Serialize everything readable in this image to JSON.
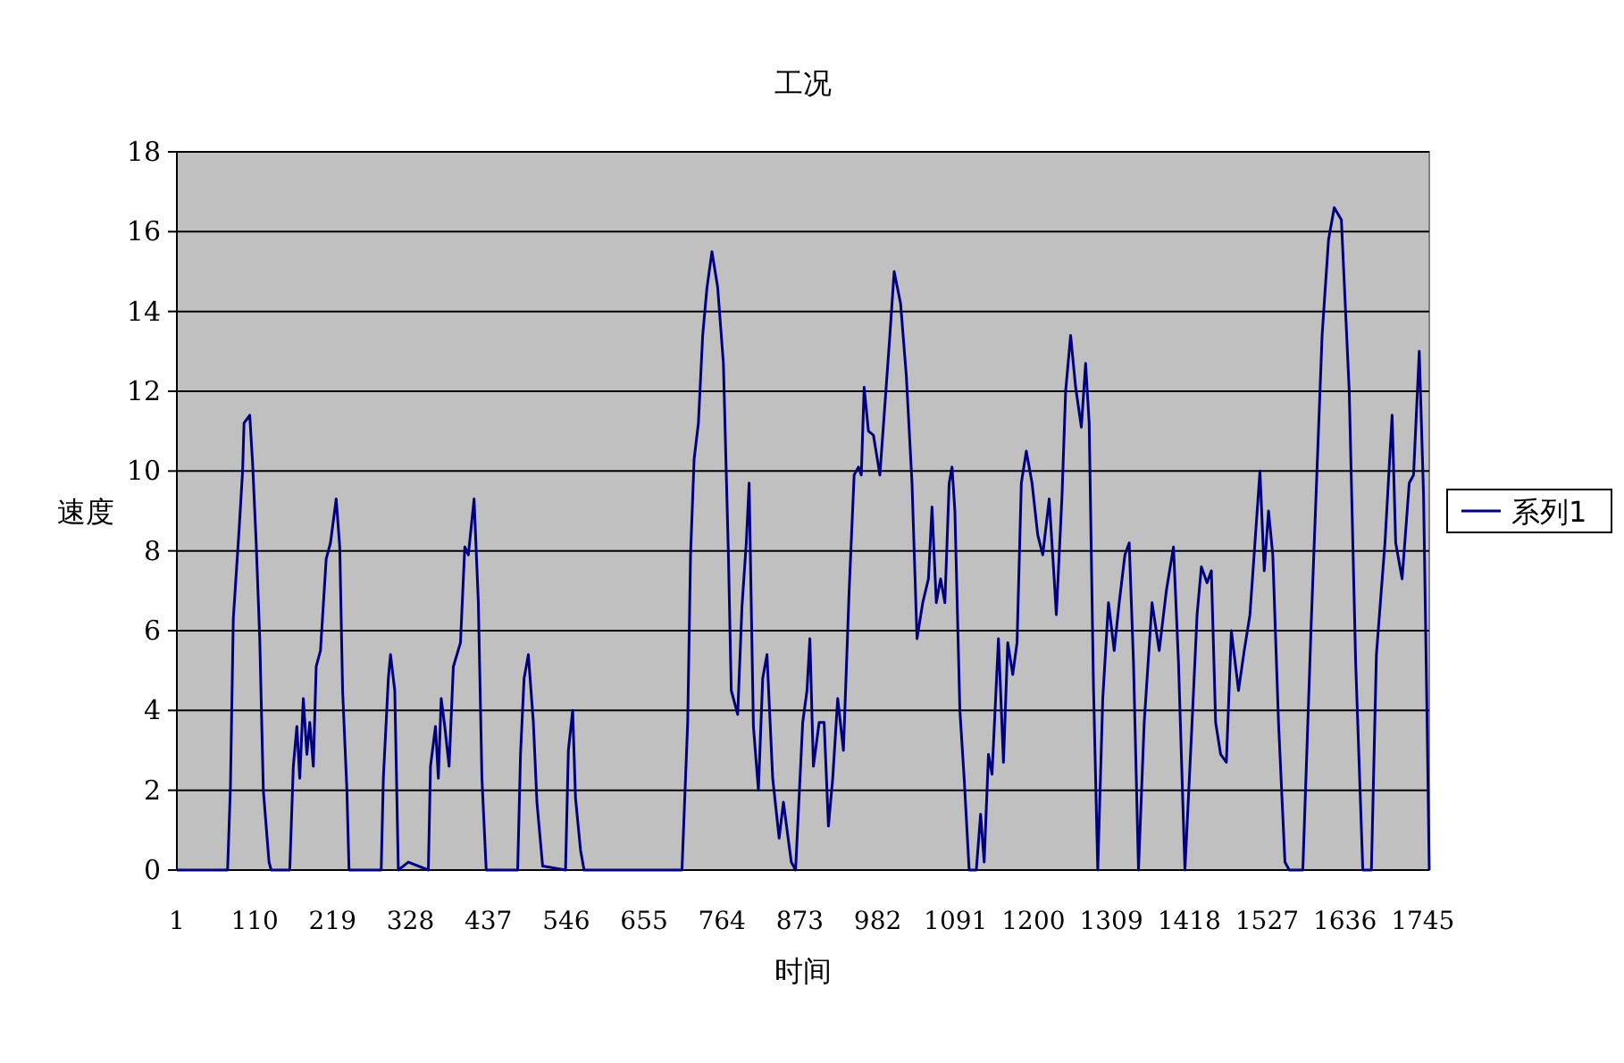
{
  "chart_data": {
    "type": "line",
    "title": "工况",
    "xlabel": "时间",
    "ylabel": "速度",
    "x": [
      1,
      72,
      76,
      80,
      88,
      93,
      95,
      103,
      107,
      112,
      117,
      122,
      130,
      133,
      159,
      164,
      169,
      173,
      178,
      183,
      187,
      192,
      196,
      202,
      210,
      216,
      224,
      229,
      233,
      239,
      242,
      287,
      290,
      297,
      300,
      306,
      311,
      325,
      353,
      356,
      363,
      367,
      371,
      376,
      382,
      388,
      398,
      404,
      409,
      417,
      423,
      428,
      434,
      478,
      482,
      487,
      493,
      500,
      505,
      513,
      545,
      549,
      555,
      559,
      566,
      571,
      708,
      716,
      720,
      725,
      731,
      737,
      743,
      750,
      758,
      766,
      773,
      777,
      786,
      792,
      798,
      802,
      808,
      815,
      821,
      827,
      835,
      844,
      850,
      861,
      867,
      877,
      883,
      887,
      892,
      900,
      907,
      913,
      919,
      926,
      934,
      942,
      949,
      955,
      959,
      963,
      969,
      976,
      985,
      993,
      999,
      1005,
      1014,
      1022,
      1030,
      1037,
      1045,
      1053,
      1058,
      1064,
      1070,
      1076,
      1082,
      1086,
      1090,
      1097,
      1103,
      1110,
      1120,
      1126,
      1131,
      1137,
      1142,
      1151,
      1158,
      1164,
      1171,
      1177,
      1183,
      1190,
      1198,
      1206,
      1213,
      1222,
      1229,
      1232,
      1240,
      1245,
      1252,
      1259,
      1267,
      1273,
      1278,
      1284,
      1290,
      1297,
      1305,
      1313,
      1320,
      1328,
      1334,
      1340,
      1347,
      1355,
      1366,
      1376,
      1386,
      1396,
      1403,
      1412,
      1422,
      1429,
      1435,
      1443,
      1449,
      1455,
      1462,
      1470,
      1477,
      1487,
      1495,
      1503,
      1510,
      1517,
      1523,
      1529,
      1535,
      1543,
      1552,
      1558,
      1577,
      1589,
      1604,
      1613,
      1621,
      1631,
      1642,
      1651,
      1661,
      1673,
      1680,
      1692,
      1702,
      1707,
      1716,
      1726,
      1732,
      1740,
      1746,
      1751,
      1754
    ],
    "series": [
      {
        "name": "系列1",
        "color": "#000080",
        "values": [
          0,
          0,
          2.1,
          6.3,
          8.5,
          10.0,
          11.2,
          11.4,
          10.2,
          8.2,
          5.8,
          2.0,
          0.2,
          0,
          0,
          2.6,
          3.6,
          2.3,
          4.3,
          2.9,
          3.7,
          2.6,
          5.1,
          5.5,
          7.8,
          8.2,
          9.3,
          8.1,
          4.5,
          2.0,
          0,
          0,
          2.3,
          4.8,
          5.4,
          4.5,
          0,
          0.2,
          0,
          2.6,
          3.6,
          2.3,
          4.3,
          3.6,
          2.6,
          5.1,
          5.7,
          8.1,
          7.9,
          9.3,
          6.7,
          2.3,
          0,
          0,
          2.9,
          4.8,
          5.4,
          3.7,
          1.7,
          0.1,
          0,
          3.0,
          4.0,
          1.8,
          0.5,
          0,
          0,
          3.7,
          7.9,
          10.3,
          11.2,
          13.4,
          14.6,
          15.5,
          14.6,
          12.7,
          7.9,
          4.5,
          3.9,
          6.6,
          8.2,
          9.7,
          3.6,
          2.0,
          4.8,
          5.4,
          2.3,
          0.8,
          1.7,
          0.2,
          0,
          3.7,
          4.5,
          5.8,
          2.6,
          3.7,
          3.7,
          1.1,
          2.3,
          4.3,
          3.0,
          7.0,
          9.9,
          10.1,
          9.9,
          12.1,
          11.0,
          10.9,
          9.9,
          11.9,
          13.4,
          15.0,
          14.2,
          12.4,
          9.7,
          5.8,
          6.7,
          7.3,
          9.1,
          6.7,
          7.3,
          6.7,
          9.7,
          10.1,
          9.0,
          4.0,
          2.3,
          0,
          0,
          1.4,
          0.2,
          2.9,
          2.4,
          5.8,
          2.7,
          5.7,
          4.9,
          5.7,
          9.7,
          10.5,
          9.7,
          8.4,
          7.9,
          9.3,
          7.3,
          6.4,
          9.4,
          12.0,
          13.4,
          12.1,
          11.1,
          12.7,
          11.2,
          4.6,
          0,
          4.3,
          6.7,
          5.5,
          6.7,
          7.9,
          8.2,
          5.2,
          0,
          3.7,
          6.7,
          5.5,
          7.0,
          8.1,
          5.2,
          0,
          3.7,
          6.4,
          7.6,
          7.2,
          7.5,
          3.7,
          2.9,
          2.7,
          6.0,
          4.5,
          5.5,
          6.4,
          8.2,
          10.0,
          7.5,
          9.0,
          7.9,
          3.7,
          0.2,
          0,
          0,
          6.3,
          13.4,
          15.8,
          16.6,
          16.3,
          12.0,
          5.2,
          0,
          0,
          5.4,
          8.2,
          11.4,
          8.2,
          7.3,
          9.7,
          9.9,
          13.0,
          9.4,
          3.7,
          0
        ]
      }
    ],
    "xlim": [
      1,
      1754
    ],
    "ylim": [
      0,
      18
    ],
    "xticks": [
      1,
      110,
      219,
      328,
      437,
      546,
      655,
      764,
      873,
      982,
      1091,
      1200,
      1309,
      1418,
      1527,
      1636,
      1745
    ],
    "yticks": [
      0,
      2,
      4,
      6,
      8,
      10,
      12,
      14,
      16,
      18
    ],
    "grid": "y",
    "legend": "right"
  }
}
